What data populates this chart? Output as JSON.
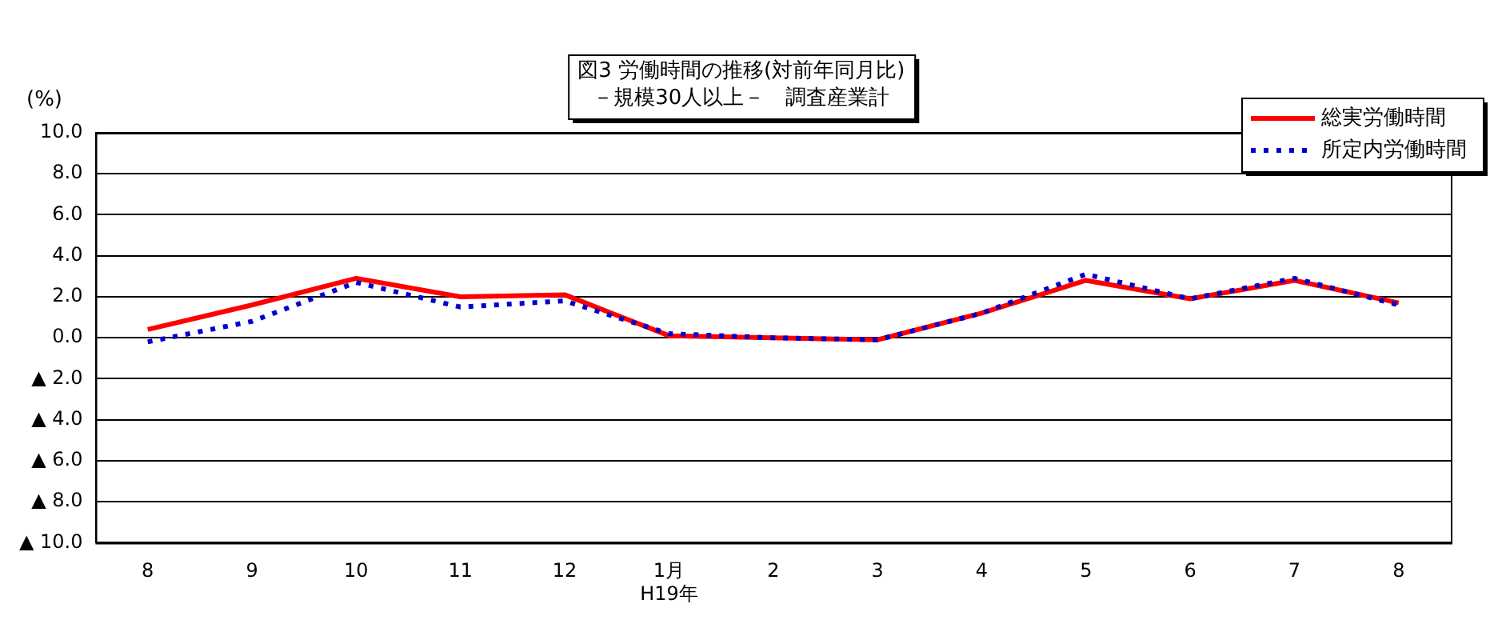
{
  "chart_data": {
    "type": "line",
    "title": "図3 労働時間の推移(対前年同月比)\n－規模30人以上－　調査産業計",
    "ylabel": "(%)",
    "categories": [
      "8",
      "9",
      "10",
      "11",
      "12",
      "1月\nH19年",
      "2",
      "3",
      "4",
      "5",
      "6",
      "7",
      "8"
    ],
    "series": [
      {
        "name": "総実労働時間",
        "color": "#ff0000",
        "line_style": "solid",
        "values": [
          0.4,
          1.6,
          2.9,
          2.0,
          2.1,
          0.1,
          0.0,
          -0.1,
          1.2,
          2.8,
          1.9,
          2.8,
          1.7
        ]
      },
      {
        "name": "所定内労働時間",
        "color": "#0000cc",
        "line_style": "dotted",
        "values": [
          -0.2,
          0.8,
          2.7,
          1.5,
          1.8,
          0.2,
          0.0,
          -0.1,
          1.2,
          3.1,
          1.9,
          2.9,
          1.6
        ]
      }
    ],
    "ylim": [
      -10,
      10
    ],
    "yticks": [
      {
        "value": -10,
        "label": "▲ 10.0"
      },
      {
        "value": -8,
        "label": "▲ 8.0"
      },
      {
        "value": -6,
        "label": "▲ 6.0"
      },
      {
        "value": -4,
        "label": "▲ 4.0"
      },
      {
        "value": -2,
        "label": "▲ 2.0"
      },
      {
        "value": 0,
        "label": "0.0"
      },
      {
        "value": 2,
        "label": "2.0"
      },
      {
        "value": 4,
        "label": "4.0"
      },
      {
        "value": 6,
        "label": "6.0"
      },
      {
        "value": 8,
        "label": "8.0"
      },
      {
        "value": 10,
        "label": "10.0"
      }
    ],
    "grid": "y",
    "legend": "top right",
    "marker": "none"
  }
}
